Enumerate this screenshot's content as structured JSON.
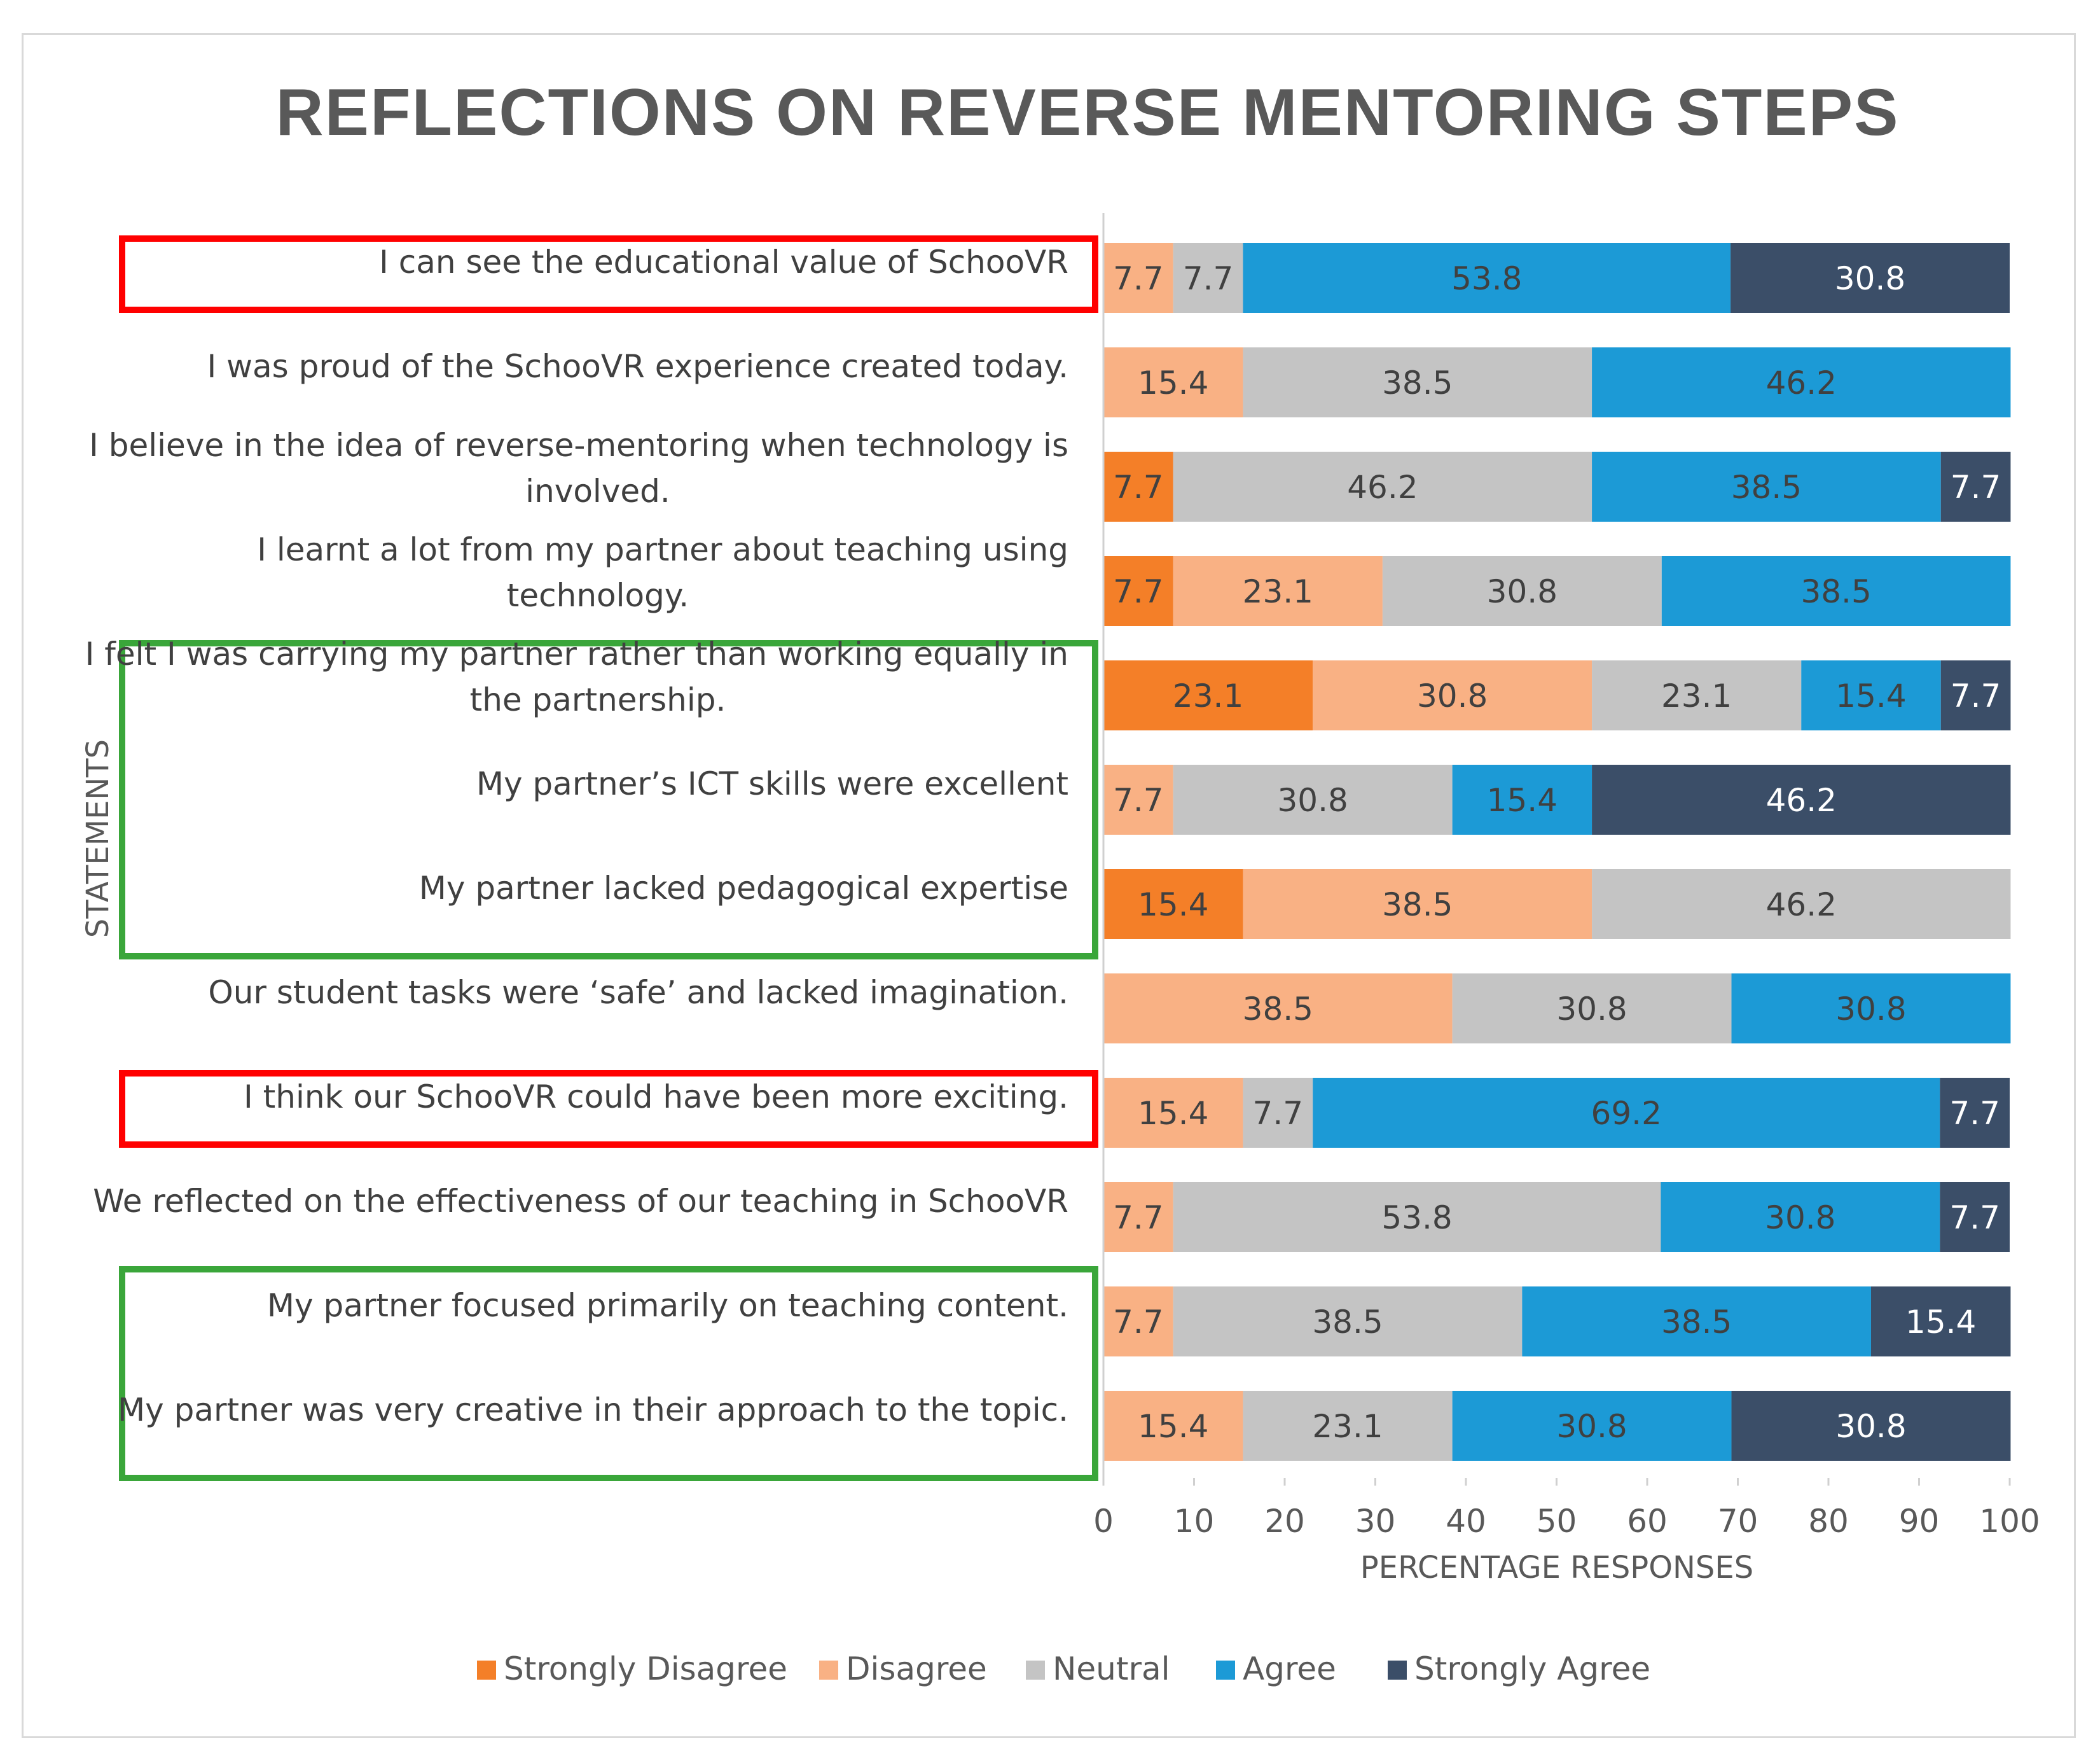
{
  "chart_data": {
    "type": "bar",
    "orientation": "horizontal-stacked",
    "title": "REFLECTIONS ON REVERSE MENTORING STEPS",
    "xlabel": "PERCENTAGE RESPONSES",
    "ylabel": "STATEMENTS",
    "xlim": [
      0,
      100
    ],
    "xticks": [
      0,
      10,
      20,
      30,
      40,
      50,
      60,
      70,
      80,
      90,
      100
    ],
    "legend_position": "bottom",
    "categories": [
      {
        "lines": [
          "I can see the educational value of SchooVR"
        ],
        "highlight": "red"
      },
      {
        "lines": [
          "I was proud of the SchooVR experience created today."
        ],
        "highlight": ""
      },
      {
        "lines": [
          "I believe in the idea of reverse-mentoring when technology is",
          "involved."
        ],
        "highlight": ""
      },
      {
        "lines": [
          "I learnt a lot from my partner about teaching using",
          "technology."
        ],
        "highlight": ""
      },
      {
        "lines": [
          "I felt I was carrying my partner rather than working equally in",
          "the partnership."
        ],
        "highlight": "green-group-1"
      },
      {
        "lines": [
          "My partner’s ICT skills were excellent"
        ],
        "highlight": "green-group-1"
      },
      {
        "lines": [
          "My partner lacked pedagogical expertise"
        ],
        "highlight": "green-group-1"
      },
      {
        "lines": [
          "Our student tasks were ‘safe’ and lacked imagination."
        ],
        "highlight": ""
      },
      {
        "lines": [
          "I think our SchooVR could have been more exciting."
        ],
        "highlight": "red"
      },
      {
        "lines": [
          "We reflected on the effectiveness of our teaching in SchooVR"
        ],
        "highlight": ""
      },
      {
        "lines": [
          "My partner focused primarily on teaching content."
        ],
        "highlight": "green-group-2"
      },
      {
        "lines": [
          "My partner was very creative in their approach to the topic."
        ],
        "highlight": "green-group-2"
      }
    ],
    "series": [
      {
        "name": "Strongly Disagree",
        "color": "#f47f28",
        "label_color": "#404040",
        "values": [
          0,
          0,
          7.7,
          7.7,
          23.1,
          0,
          15.4,
          0,
          0,
          0,
          0,
          0
        ]
      },
      {
        "name": "Disagree",
        "color": "#f9b184",
        "label_color": "#404040",
        "values": [
          7.7,
          15.4,
          0,
          23.1,
          30.8,
          7.7,
          38.5,
          38.5,
          15.4,
          7.7,
          7.7,
          15.4
        ]
      },
      {
        "name": "Neutral",
        "color": "#c4c4c4",
        "label_color": "#404040",
        "values": [
          7.7,
          38.5,
          46.2,
          30.8,
          23.1,
          30.8,
          46.2,
          30.8,
          7.7,
          53.8,
          38.5,
          23.1
        ]
      },
      {
        "name": "Agree",
        "color": "#1c9ad6",
        "label_color": "#404040",
        "values": [
          53.8,
          46.2,
          38.5,
          38.5,
          15.4,
          15.4,
          0,
          30.8,
          69.2,
          30.8,
          38.5,
          30.8
        ]
      },
      {
        "name": "Strongly Agree",
        "color": "#3b4e68",
        "label_color": "#ffffff",
        "values": [
          30.8,
          0,
          7.7,
          0,
          7.7,
          46.2,
          0,
          0,
          7.7,
          7.7,
          15.4,
          30.8
        ]
      }
    ],
    "highlight_colors": {
      "red": "#ff0000",
      "green": "#3aa63a"
    }
  }
}
